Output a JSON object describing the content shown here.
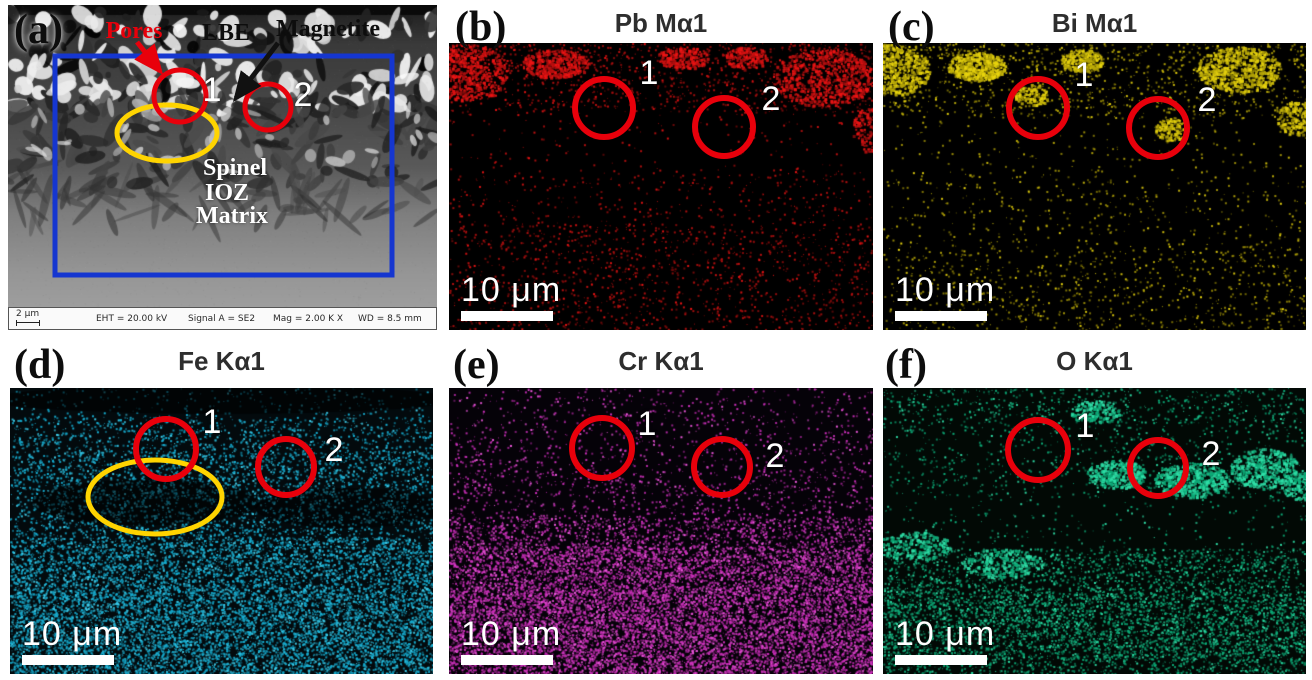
{
  "figure": {
    "overlay_colors": {
      "circle": "#e8000b",
      "ellipse": "#ffd400",
      "rect": "#1536d0",
      "arrow_red": "#e8000b",
      "arrow_black": "#111111"
    },
    "panels": [
      {
        "id": "a",
        "label": "(a)",
        "region1": "1",
        "region2": "2",
        "annotations": {
          "pores": "Pores",
          "lbe": "LBE",
          "magnetite": "Magnetite",
          "spinel": "Spinel",
          "ioz": "IOZ",
          "matrix": "Matrix"
        },
        "metadata_bar": {
          "scale": "2 μm",
          "eht": "EHT = 20.00 kV",
          "signal": "Signal A = SE2",
          "mag": "Mag = 2.00 K X",
          "wd": "WD = 8.5 mm"
        }
      },
      {
        "id": "b",
        "label": "(b)",
        "title": "Pb Mα1",
        "scale_bar": "10 μm",
        "region1": "1",
        "region2": "2",
        "map": {
          "bg": "#000000",
          "dot": "#b50f0f",
          "bright": "#ee1414",
          "bands": [
            [
              0,
              0.06,
              55
            ],
            [
              0.06,
              0.24,
              33
            ],
            [
              0.24,
              0.45,
              6
            ],
            [
              0.45,
              0.62,
              15
            ],
            [
              0.62,
              1,
              28
            ]
          ],
          "clusters": [
            [
              0.04,
              0.1,
              0.1,
              0.1,
              550
            ],
            [
              0.25,
              0.07,
              0.08,
              0.05,
              380
            ],
            [
              0.55,
              0.05,
              0.06,
              0.04,
              220
            ],
            [
              0.88,
              0.12,
              0.12,
              0.1,
              650
            ],
            [
              0.7,
              0.05,
              0.05,
              0.04,
              180
            ],
            [
              0.99,
              0.3,
              0.04,
              0.08,
              150
            ]
          ]
        }
      },
      {
        "id": "c",
        "label": "(c)",
        "title": "Bi Mα1",
        "scale_bar": "10 μm",
        "region1": "1",
        "region2": "2",
        "map": {
          "bg": "#000000",
          "dot": "#b3a307",
          "bright": "#e8d40e",
          "bands": [
            [
              0,
              0.06,
              50
            ],
            [
              0.06,
              0.26,
              30
            ],
            [
              0.26,
              0.48,
              7
            ],
            [
              0.48,
              0.7,
              13
            ],
            [
              0.7,
              1,
              22
            ]
          ],
          "clusters": [
            [
              0.02,
              0.09,
              0.09,
              0.09,
              650
            ],
            [
              0.22,
              0.08,
              0.07,
              0.05,
              480
            ],
            [
              0.47,
              0.06,
              0.05,
              0.04,
              230
            ],
            [
              0.84,
              0.09,
              0.1,
              0.08,
              600
            ],
            [
              0.98,
              0.26,
              0.05,
              0.06,
              200
            ],
            [
              0.68,
              0.3,
              0.04,
              0.04,
              140
            ],
            [
              0.35,
              0.18,
              0.04,
              0.04,
              120
            ]
          ]
        }
      },
      {
        "id": "d",
        "label": "(d)",
        "title": "Fe Kα1",
        "scale_bar": "10 μm",
        "region1": "1",
        "region2": "2",
        "map": {
          "bg": "#030a0d",
          "dot": "#16aed2",
          "bright": "#3fd0ee",
          "bands": [
            [
              0,
              0.1,
              20
            ],
            [
              0.1,
              0.22,
              60
            ],
            [
              0.22,
              0.38,
              90
            ],
            [
              0.38,
              0.52,
              75
            ],
            [
              0.52,
              0.7,
              150
            ],
            [
              0.7,
              1,
              190
            ]
          ],
          "dark": [
            [
              0.32,
              0.4,
              0.27,
              0.08,
              0.5
            ],
            [
              0.8,
              0.42,
              0.22,
              0.07,
              0.45
            ],
            [
              0.5,
              0.04,
              0.55,
              0.05,
              0.6
            ]
          ]
        }
      },
      {
        "id": "e",
        "label": "(e)",
        "title": "Cr Kα1",
        "scale_bar": "10 μm",
        "region1": "1",
        "region2": "2",
        "map": {
          "bg": "#050208",
          "dot": "#cc2fbb",
          "bright": "#ef58de",
          "bands": [
            [
              0,
              0.28,
              22
            ],
            [
              0.28,
              0.45,
              35
            ],
            [
              0.45,
              0.55,
              95
            ],
            [
              0.55,
              0.7,
              185
            ],
            [
              0.7,
              1,
              215
            ]
          ]
        }
      },
      {
        "id": "f",
        "label": "(f)",
        "title": "O Kα1",
        "scale_bar": "10 μm",
        "region1": "1",
        "region2": "2",
        "map": {
          "bg": "#020905",
          "dot": "#0caa77",
          "bright": "#2fe0a8",
          "bands": [
            [
              0,
              0.12,
              42
            ],
            [
              0.12,
              0.38,
              22
            ],
            [
              0.38,
              0.56,
              9
            ],
            [
              0.56,
              0.7,
              75
            ],
            [
              0.7,
              0.95,
              135
            ],
            [
              0.95,
              1,
              85
            ]
          ],
          "clusters": [
            [
              0.55,
              0.3,
              0.07,
              0.05,
              350
            ],
            [
              0.73,
              0.32,
              0.09,
              0.06,
              480
            ],
            [
              0.9,
              0.28,
              0.08,
              0.07,
              420
            ],
            [
              0.99,
              0.34,
              0.05,
              0.05,
              180
            ],
            [
              0.07,
              0.55,
              0.09,
              0.05,
              240
            ],
            [
              0.28,
              0.61,
              0.1,
              0.05,
              240
            ],
            [
              0.5,
              0.08,
              0.06,
              0.04,
              160
            ]
          ]
        }
      }
    ]
  }
}
